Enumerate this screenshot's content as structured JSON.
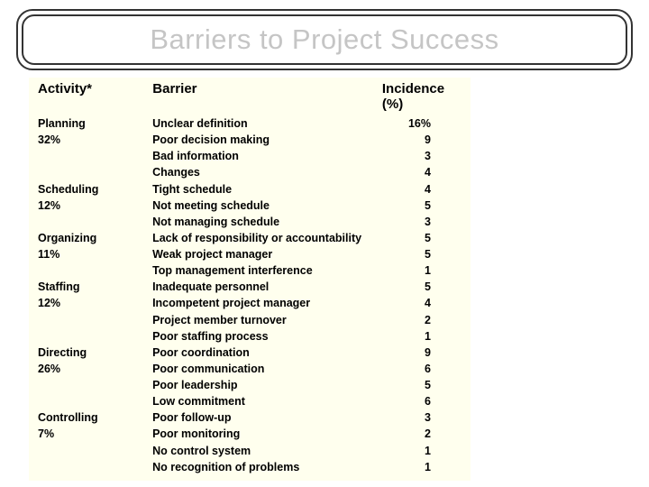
{
  "title": "Barriers to Project Success",
  "headers": {
    "activity": "Activity*",
    "barrier": "Barrier",
    "incidence": "Incidence (%)"
  },
  "colors": {
    "background": "#ffffff",
    "panel": "#ffffee",
    "title_text": "#c5c5c5",
    "border": "#333333",
    "text": "#000000"
  },
  "groups": [
    {
      "activity": "Planning",
      "percent": "32%",
      "rows": [
        {
          "barrier": "Unclear definition",
          "incidence": "16%"
        },
        {
          "barrier": "Poor decision making",
          "incidence": "9"
        },
        {
          "barrier": "Bad information",
          "incidence": "3"
        },
        {
          "barrier": "Changes",
          "incidence": "4"
        }
      ]
    },
    {
      "activity": "Scheduling",
      "percent": "12%",
      "rows": [
        {
          "barrier": "Tight schedule",
          "incidence": "4"
        },
        {
          "barrier": "Not meeting schedule",
          "incidence": "5"
        },
        {
          "barrier": "Not managing schedule",
          "incidence": "3"
        }
      ]
    },
    {
      "activity": "Organizing",
      "percent": "11%",
      "rows": [
        {
          "barrier": "Lack of responsibility or accountability",
          "incidence": "5"
        },
        {
          "barrier": "Weak project manager",
          "incidence": "5"
        },
        {
          "barrier": "Top management interference",
          "incidence": "1"
        }
      ]
    },
    {
      "activity": "Staffing",
      "percent": "12%",
      "rows": [
        {
          "barrier": "Inadequate personnel",
          "incidence": "5"
        },
        {
          "barrier": "Incompetent project manager",
          "incidence": "4"
        },
        {
          "barrier": "Project member turnover",
          "incidence": "2"
        },
        {
          "barrier": "Poor staffing process",
          "incidence": "1"
        }
      ]
    },
    {
      "activity": "Directing",
      "percent": "26%",
      "rows": [
        {
          "barrier": "Poor coordination",
          "incidence": "9"
        },
        {
          "barrier": "Poor communication",
          "incidence": "6"
        },
        {
          "barrier": "Poor leadership",
          "incidence": "5"
        },
        {
          "barrier": "Low commitment",
          "incidence": "6"
        }
      ]
    },
    {
      "activity": "Controlling",
      "percent": "7%",
      "rows": [
        {
          "barrier": "Poor follow-up",
          "incidence": "3"
        },
        {
          "barrier": "Poor monitoring",
          "incidence": "2"
        },
        {
          "barrier": "No control system",
          "incidence": "1"
        },
        {
          "barrier": "No recognition of problems",
          "incidence": "1"
        }
      ]
    }
  ]
}
